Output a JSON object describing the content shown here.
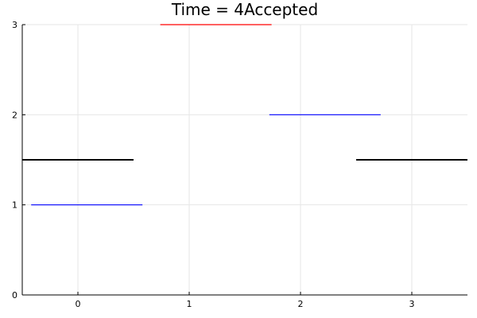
{
  "chart_data": {
    "type": "line",
    "title": "Time = 4Accepted",
    "xlabel": "",
    "ylabel": "",
    "xlim": [
      -0.5,
      3.5
    ],
    "ylim": [
      0,
      3
    ],
    "x_ticks": [
      "0",
      "1",
      "2",
      "3"
    ],
    "y_ticks": [
      "0",
      "1",
      "2",
      "3"
    ],
    "grid": true,
    "legend": "none",
    "segments": [
      {
        "x": [
          -0.5,
          0.5
        ],
        "y": 1.5,
        "color": "#000000"
      },
      {
        "x": [
          2.5,
          3.5
        ],
        "y": 1.5,
        "color": "#000000"
      },
      {
        "x": [
          -0.42,
          0.58
        ],
        "y": 1,
        "color": "#0000ff"
      },
      {
        "x": [
          1.72,
          2.72
        ],
        "y": 2,
        "color": "#0000ff"
      },
      {
        "x": [
          0.74,
          1.74
        ],
        "y": 3,
        "color": "#ff0000"
      }
    ]
  }
}
